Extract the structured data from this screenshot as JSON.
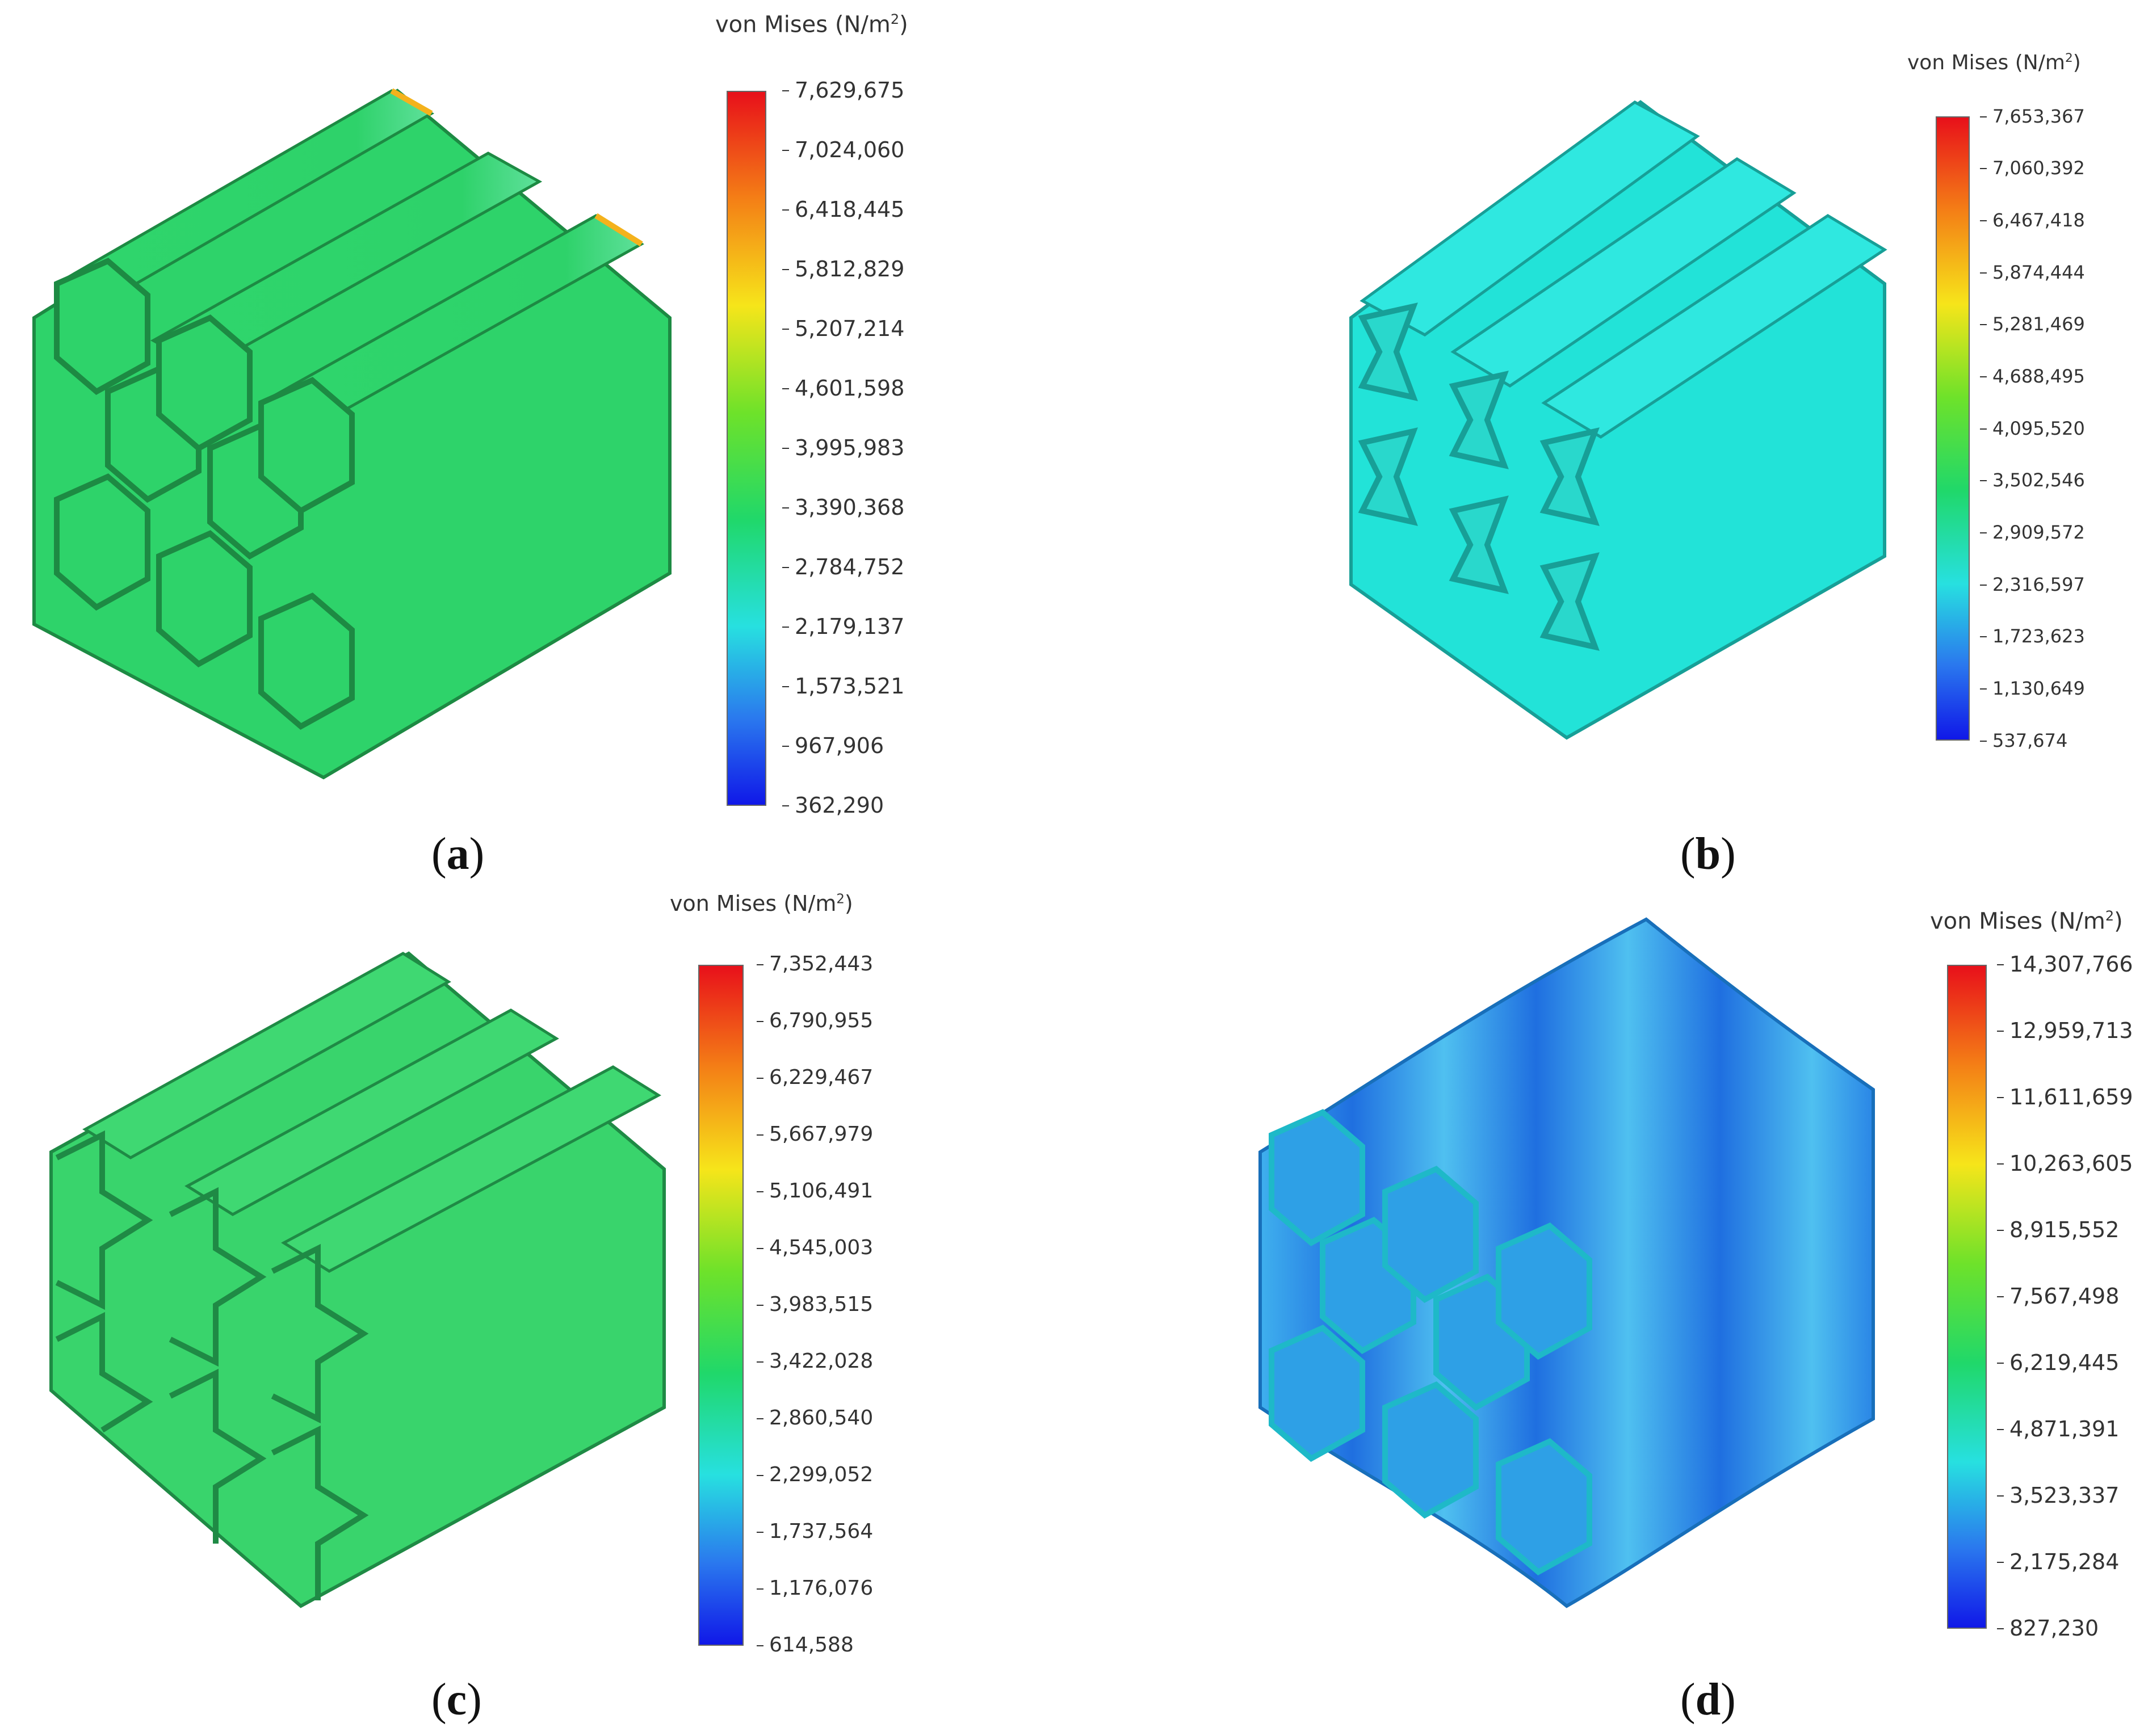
{
  "panels": [
    {
      "id": "a",
      "label_open": "(",
      "label_letter": "a",
      "label_close": ")",
      "legend": {
        "title": "von Mises (N/m",
        "title_sup": "2",
        "title_close": ")",
        "ticks": [
          "7,629,675",
          "7,024,060",
          "6,418,445",
          "5,812,829",
          "5,207,214",
          "4,601,598",
          "3,995,983",
          "3,390,368",
          "2,784,752",
          "2,179,137",
          "1,573,521",
          "967,906",
          "362,290"
        ]
      },
      "structure": "hexagonal-honeycomb",
      "dominant_color": "#2ed36a"
    },
    {
      "id": "b",
      "label_open": "(",
      "label_letter": "b",
      "label_close": ")",
      "legend": {
        "title": "von Mises (N/m",
        "title_sup": "2",
        "title_close": ")",
        "ticks": [
          "7,653,367",
          "7,060,392",
          "6,467,418",
          "5,874,444",
          "5,281,469",
          "4,688,495",
          "4,095,520",
          "3,502,546",
          "2,909,572",
          "2,316,597",
          "1,723,623",
          "1,130,649",
          "537,674"
        ]
      },
      "structure": "re-entrant-bowtie",
      "dominant_color": "#22e3d8"
    },
    {
      "id": "c",
      "label_open": "(",
      "label_letter": "c",
      "label_close": ")",
      "legend": {
        "title": "von Mises (N/m",
        "title_sup": "2",
        "title_close": ")",
        "ticks": [
          "7,352,443",
          "6,790,955",
          "6,229,467",
          "5,667,979",
          "5,106,491",
          "4,545,003",
          "3,983,515",
          "3,422,028",
          "2,860,540",
          "2,299,052",
          "1,737,564",
          "1,176,076",
          "614,588"
        ]
      },
      "structure": "arrow-lattice",
      "dominant_color": "#39d46c"
    },
    {
      "id": "d",
      "label_open": "(",
      "label_letter": "d",
      "label_close": ")",
      "legend": {
        "title": "von Mises (N/m",
        "title_sup": "2",
        "title_close": ")",
        "ticks": [
          "14,307,766",
          "12,959,713",
          "11,611,659",
          "10,263,605",
          "8,915,552",
          "7,567,498",
          "6,219,445",
          "4,871,391",
          "3,523,337",
          "2,175,284",
          "827,230"
        ]
      },
      "structure": "wavy-hexagonal-honeycomb",
      "dominant_color": "#2aa6e8"
    }
  ]
}
